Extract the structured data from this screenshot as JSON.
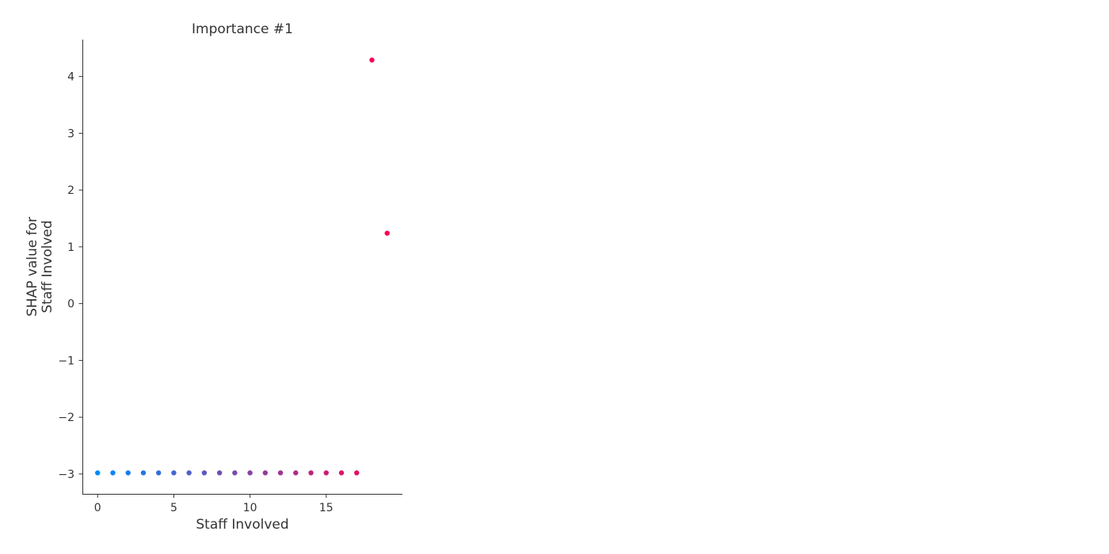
{
  "chart_data": {
    "type": "scatter",
    "title": "Importance #1",
    "xlabel": "Staff Involved",
    "ylabel_lines": [
      "SHAP value for",
      "Staff Involved"
    ],
    "xlim": [
      -1,
      20
    ],
    "ylim": [
      -3.35,
      4.65
    ],
    "xticks": [
      0,
      5,
      10,
      15
    ],
    "xtick_labels": [
      "0",
      "5",
      "10",
      "15"
    ],
    "yticks": [
      -3,
      -2,
      -1,
      0,
      1,
      2,
      3,
      4
    ],
    "ytick_labels": [
      "−3",
      "−2",
      "−1",
      "0",
      "1",
      "2",
      "3",
      "4"
    ],
    "grid": false,
    "legend": "none",
    "colormap": {
      "low": "#008bfb",
      "high": "#ff0052"
    },
    "color_value_range": [
      0,
      19
    ],
    "points": [
      {
        "x": 0,
        "y": -2.98
      },
      {
        "x": 1,
        "y": -2.98
      },
      {
        "x": 2,
        "y": -2.98
      },
      {
        "x": 3,
        "y": -2.98
      },
      {
        "x": 4,
        "y": -2.98
      },
      {
        "x": 5,
        "y": -2.98
      },
      {
        "x": 6,
        "y": -2.98
      },
      {
        "x": 7,
        "y": -2.98
      },
      {
        "x": 8,
        "y": -2.98
      },
      {
        "x": 9,
        "y": -2.98
      },
      {
        "x": 10,
        "y": -2.98
      },
      {
        "x": 11,
        "y": -2.98
      },
      {
        "x": 12,
        "y": -2.98
      },
      {
        "x": 13,
        "y": -2.98
      },
      {
        "x": 14,
        "y": -2.98
      },
      {
        "x": 15,
        "y": -2.98
      },
      {
        "x": 16,
        "y": -2.98
      },
      {
        "x": 17,
        "y": -2.98
      },
      {
        "x": 18,
        "y": 4.29
      },
      {
        "x": 19,
        "y": 1.24
      }
    ]
  }
}
